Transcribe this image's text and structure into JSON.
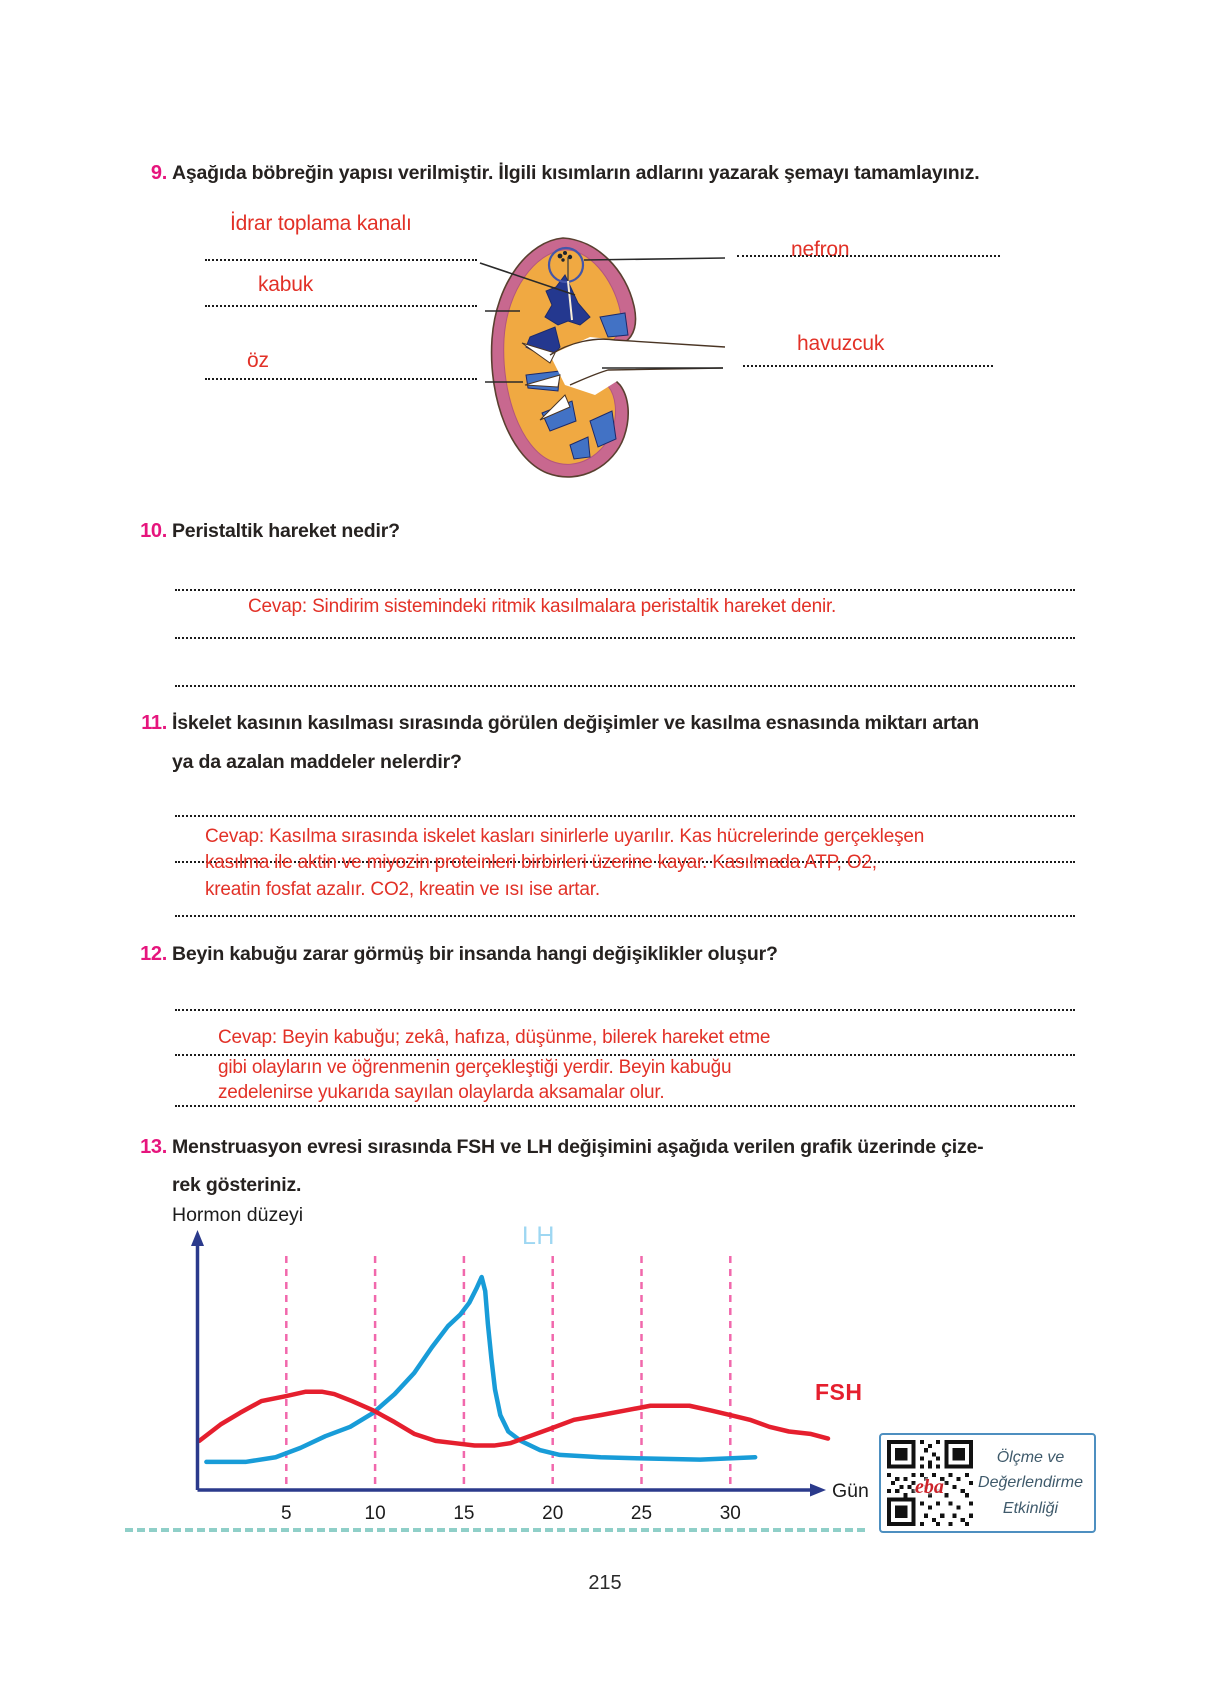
{
  "page": {
    "number": "215"
  },
  "questions": {
    "q9": {
      "number": "9.",
      "text": "Aşağıda böbreğin yapısı verilmiştir. İlgili kısımların adlarını yazarak şemayı tamamlayınız.",
      "diagram_labels": {
        "idrar": "İdrar toplama kanalı",
        "kabuk": "kabuk",
        "oz": "öz",
        "nefron": "nefron",
        "havuzcuk": "havuzcuk"
      }
    },
    "q10": {
      "number": "10.",
      "text": "Peristaltik hareket nedir?",
      "answer": "Cevap: Sindirim sistemindeki ritmik kasılmalara peristaltik hareket denir."
    },
    "q11": {
      "number": "11.",
      "text_line1": "İskelet kasının kasılması sırasında görülen değişimler ve kasılma esnasında miktarı artan",
      "text_line2": "ya da azalan maddeler nelerdir?",
      "answer_line1": "Cevap: Kasılma sırasında iskelet kasları sinirlerle uyarılır. Kas hücrelerinde gerçekleşen",
      "answer_line2": "kasılma ile aktin ve miyozin proteinleri birbirleri üzerine kayar. Kasılmada ATP, O2,",
      "answer_line3": "kreatin fosfat azalır. CO2, kreatin ve ısı ise artar."
    },
    "q12": {
      "number": "12.",
      "text": "Beyin kabuğu zarar görmüş bir insanda hangi değişiklikler oluşur?",
      "answer_line1": "Cevap: Beyin kabuğu; zekâ, hafıza, düşünme, bilerek hareket etme",
      "answer_line2": "gibi olayların ve öğrenmenin gerçekleştiği yerdir. Beyin kabuğu",
      "answer_line3": "zedelenirse yukarıda sayılan olaylarda aksamalar olur."
    },
    "q13": {
      "number": "13.",
      "text_line1": "Menstruasyon evresi sırasında FSH ve LH değişimini aşağıda verilen grafik üzerinde çize-",
      "text_line2": "rek gösteriniz."
    }
  },
  "chart_data": {
    "type": "line",
    "title": "",
    "ylabel": "Hormon düzeyi",
    "xlabel": "Gün",
    "x_ticks": [
      5,
      10,
      15,
      20,
      25,
      30
    ],
    "xlim": [
      0,
      35
    ],
    "ylim": [
      0,
      100
    ],
    "grid": "dashed vertical pink line at each x tick",
    "legend_position": "labels near curves (LH above peak, FSH at right)",
    "series": [
      {
        "name": "LH",
        "color": "#189cd8",
        "label_color": "#9ed7f2",
        "points": [
          [
            0.5,
            12
          ],
          [
            2.7,
            12
          ],
          [
            4.4,
            14
          ],
          [
            5.8,
            18
          ],
          [
            7.2,
            23
          ],
          [
            8.6,
            27
          ],
          [
            9.9,
            33
          ],
          [
            11.1,
            41
          ],
          [
            12.2,
            50
          ],
          [
            13.2,
            61
          ],
          [
            14.1,
            70
          ],
          [
            14.8,
            75
          ],
          [
            15.3,
            80
          ],
          [
            15.7,
            86
          ],
          [
            16,
            91
          ],
          [
            16.2,
            85
          ],
          [
            16.35,
            71
          ],
          [
            16.55,
            56
          ],
          [
            16.75,
            43
          ],
          [
            17.05,
            32
          ],
          [
            17.5,
            25
          ],
          [
            18.2,
            21
          ],
          [
            19.3,
            17
          ],
          [
            20.4,
            15
          ],
          [
            22.7,
            14
          ],
          [
            25,
            13.5
          ],
          [
            28.3,
            13
          ],
          [
            31.4,
            14
          ]
        ]
      },
      {
        "name": "FSH",
        "color": "#e51f2e",
        "label_color": "#e51f2e",
        "points": [
          [
            0.1,
            21
          ],
          [
            1.3,
            28
          ],
          [
            2.4,
            33
          ],
          [
            3.6,
            38
          ],
          [
            4.9,
            40
          ],
          [
            6.1,
            42
          ],
          [
            7,
            42
          ],
          [
            7.7,
            41
          ],
          [
            8.7,
            38
          ],
          [
            9.9,
            34
          ],
          [
            11.1,
            29
          ],
          [
            12.2,
            24
          ],
          [
            13.4,
            21
          ],
          [
            14.5,
            20
          ],
          [
            15.6,
            19
          ],
          [
            16.7,
            19
          ],
          [
            17.6,
            20
          ],
          [
            18.7,
            23
          ],
          [
            19.8,
            26
          ],
          [
            21.2,
            30
          ],
          [
            22.7,
            32
          ],
          [
            24.1,
            34
          ],
          [
            25.5,
            36
          ],
          [
            26.6,
            36
          ],
          [
            27.7,
            36
          ],
          [
            28.9,
            34
          ],
          [
            30,
            32
          ],
          [
            31.1,
            30
          ],
          [
            32.2,
            27
          ],
          [
            33.3,
            25
          ],
          [
            34.5,
            24
          ],
          [
            35.5,
            22
          ]
        ]
      }
    ]
  },
  "footer": {
    "qr_logo": "eba",
    "qr_caption": "Ölçme ve Değerlendirme Etkinliği"
  },
  "colors": {
    "question_number": "#e6157d",
    "question_text": "#262220",
    "answer_red": "#e23127",
    "kidney_rim_pink": "#c8688f",
    "kidney_cortex_orange": "#f0a942",
    "kidney_medulla_dark_blue": "#24388f",
    "kidney_medulla_blue": "#4272c5",
    "axis_navy": "#2b3a8c",
    "grid_pink": "#f168ac",
    "lh_curve": "#189cd8",
    "lh_label": "#9ed7f2",
    "fsh_curve": "#e51f2e",
    "teal_dash": "#8fcfc8",
    "qr_border": "#4d8fc0",
    "qr_caption_color": "#3f5a6b"
  }
}
